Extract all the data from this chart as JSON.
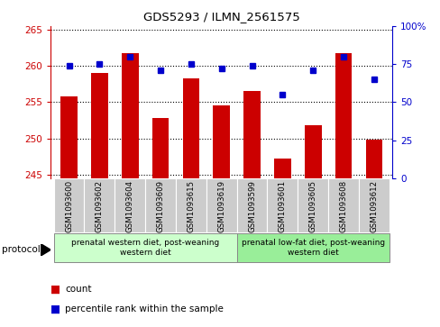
{
  "title": "GDS5293 / ILMN_2561575",
  "samples": [
    "GSM1093600",
    "GSM1093602",
    "GSM1093604",
    "GSM1093609",
    "GSM1093615",
    "GSM1093619",
    "GSM1093599",
    "GSM1093601",
    "GSM1093605",
    "GSM1093608",
    "GSM1093612"
  ],
  "bar_values": [
    255.8,
    259.0,
    261.8,
    252.8,
    258.3,
    254.5,
    256.5,
    247.2,
    251.8,
    261.8,
    249.8
  ],
  "dot_values": [
    74,
    75,
    80,
    71,
    75,
    72,
    74,
    55,
    71,
    80,
    65
  ],
  "bar_color": "#cc0000",
  "dot_color": "#0000cc",
  "ylim_left": [
    244.5,
    265.5
  ],
  "ylim_right": [
    0,
    100
  ],
  "yticks_left": [
    245,
    250,
    255,
    260,
    265
  ],
  "yticks_right": [
    0,
    25,
    50,
    75,
    100
  ],
  "group1_label": "prenatal western diet, post-weaning\nwestern diet",
  "group2_label": "prenatal low-fat diet, post-weaning\nwestern diet",
  "group1_count": 6,
  "group2_count": 5,
  "protocol_label": "protocol",
  "legend_count": "count",
  "legend_percentile": "percentile rank within the sample",
  "group1_color": "#ccffcc",
  "group2_color": "#99ee99",
  "xtick_bg": "#cccccc",
  "grid_color": "#000000"
}
